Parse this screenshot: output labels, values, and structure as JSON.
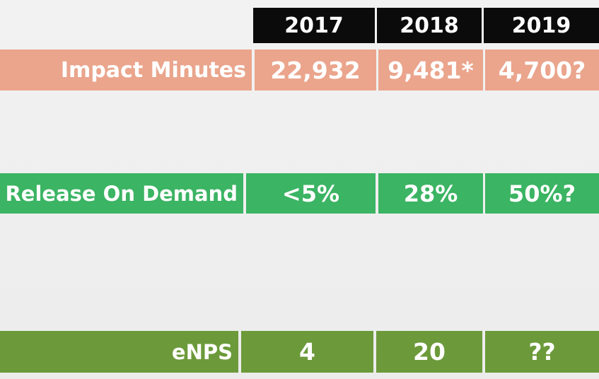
{
  "header": {
    "years": [
      "2017",
      "2018",
      "2019"
    ]
  },
  "rows": {
    "impact": {
      "label": "Impact Minutes",
      "values": [
        "22,932",
        "9,481*",
        "4,700?"
      ]
    },
    "release": {
      "label": "Release On Demand",
      "values": [
        "<5%",
        "28%",
        "50%?"
      ]
    },
    "enps": {
      "label": "eNPS",
      "values": [
        "4",
        "20",
        "??"
      ]
    }
  },
  "colors": {
    "header_bg": "#0b0b0b",
    "impact_bg": "#eaa58c",
    "release_bg": "#3bb463",
    "enps_bg": "#6c9a3a",
    "background": "#efefef"
  }
}
